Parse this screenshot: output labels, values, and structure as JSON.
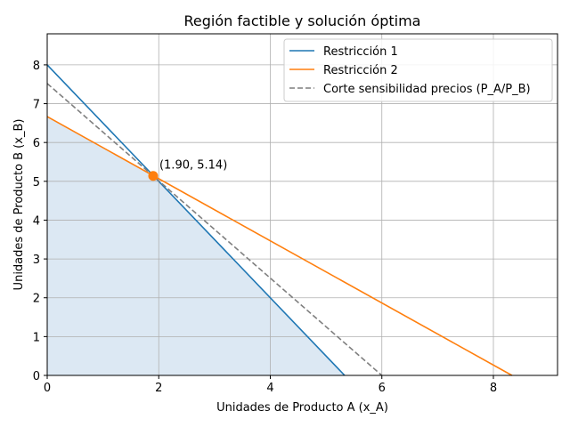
{
  "chart_data": {
    "type": "line",
    "title": "Región factible y solución óptima",
    "xlabel": "Unidades de Producto A (x_A)",
    "ylabel": "Unidades de Producto B (x_B)",
    "xlim": [
      0,
      9.15
    ],
    "ylim": [
      0,
      8.8
    ],
    "xticks": [
      0,
      2,
      4,
      6,
      8
    ],
    "yticks": [
      0,
      1,
      2,
      3,
      4,
      5,
      6,
      7,
      8
    ],
    "grid": true,
    "legend_position": "top-right",
    "series": [
      {
        "name": "Restricción 1",
        "color": "#1f77b4",
        "style": "solid",
        "x": [
          0,
          5.333
        ],
        "y": [
          8,
          0
        ]
      },
      {
        "name": "Restricción 2",
        "color": "#ff7f0e",
        "style": "solid",
        "x": [
          0,
          8.333
        ],
        "y": [
          6.667,
          0
        ]
      },
      {
        "name": "Corte sensibilidad precios (P_A/P_B)",
        "color": "#7f7f7f",
        "style": "dashed",
        "x": [
          0,
          6
        ],
        "y": [
          7.52,
          0
        ]
      }
    ],
    "feasible_region": {
      "color": "#dce8f3",
      "polygon": [
        [
          0,
          0
        ],
        [
          0,
          6.667
        ],
        [
          1.9,
          5.14
        ],
        [
          5.333,
          0
        ]
      ]
    },
    "optimal_point": {
      "x": 1.9,
      "y": 5.14,
      "label": "(1.90, 5.14)",
      "color": "#ff7f0e"
    }
  }
}
